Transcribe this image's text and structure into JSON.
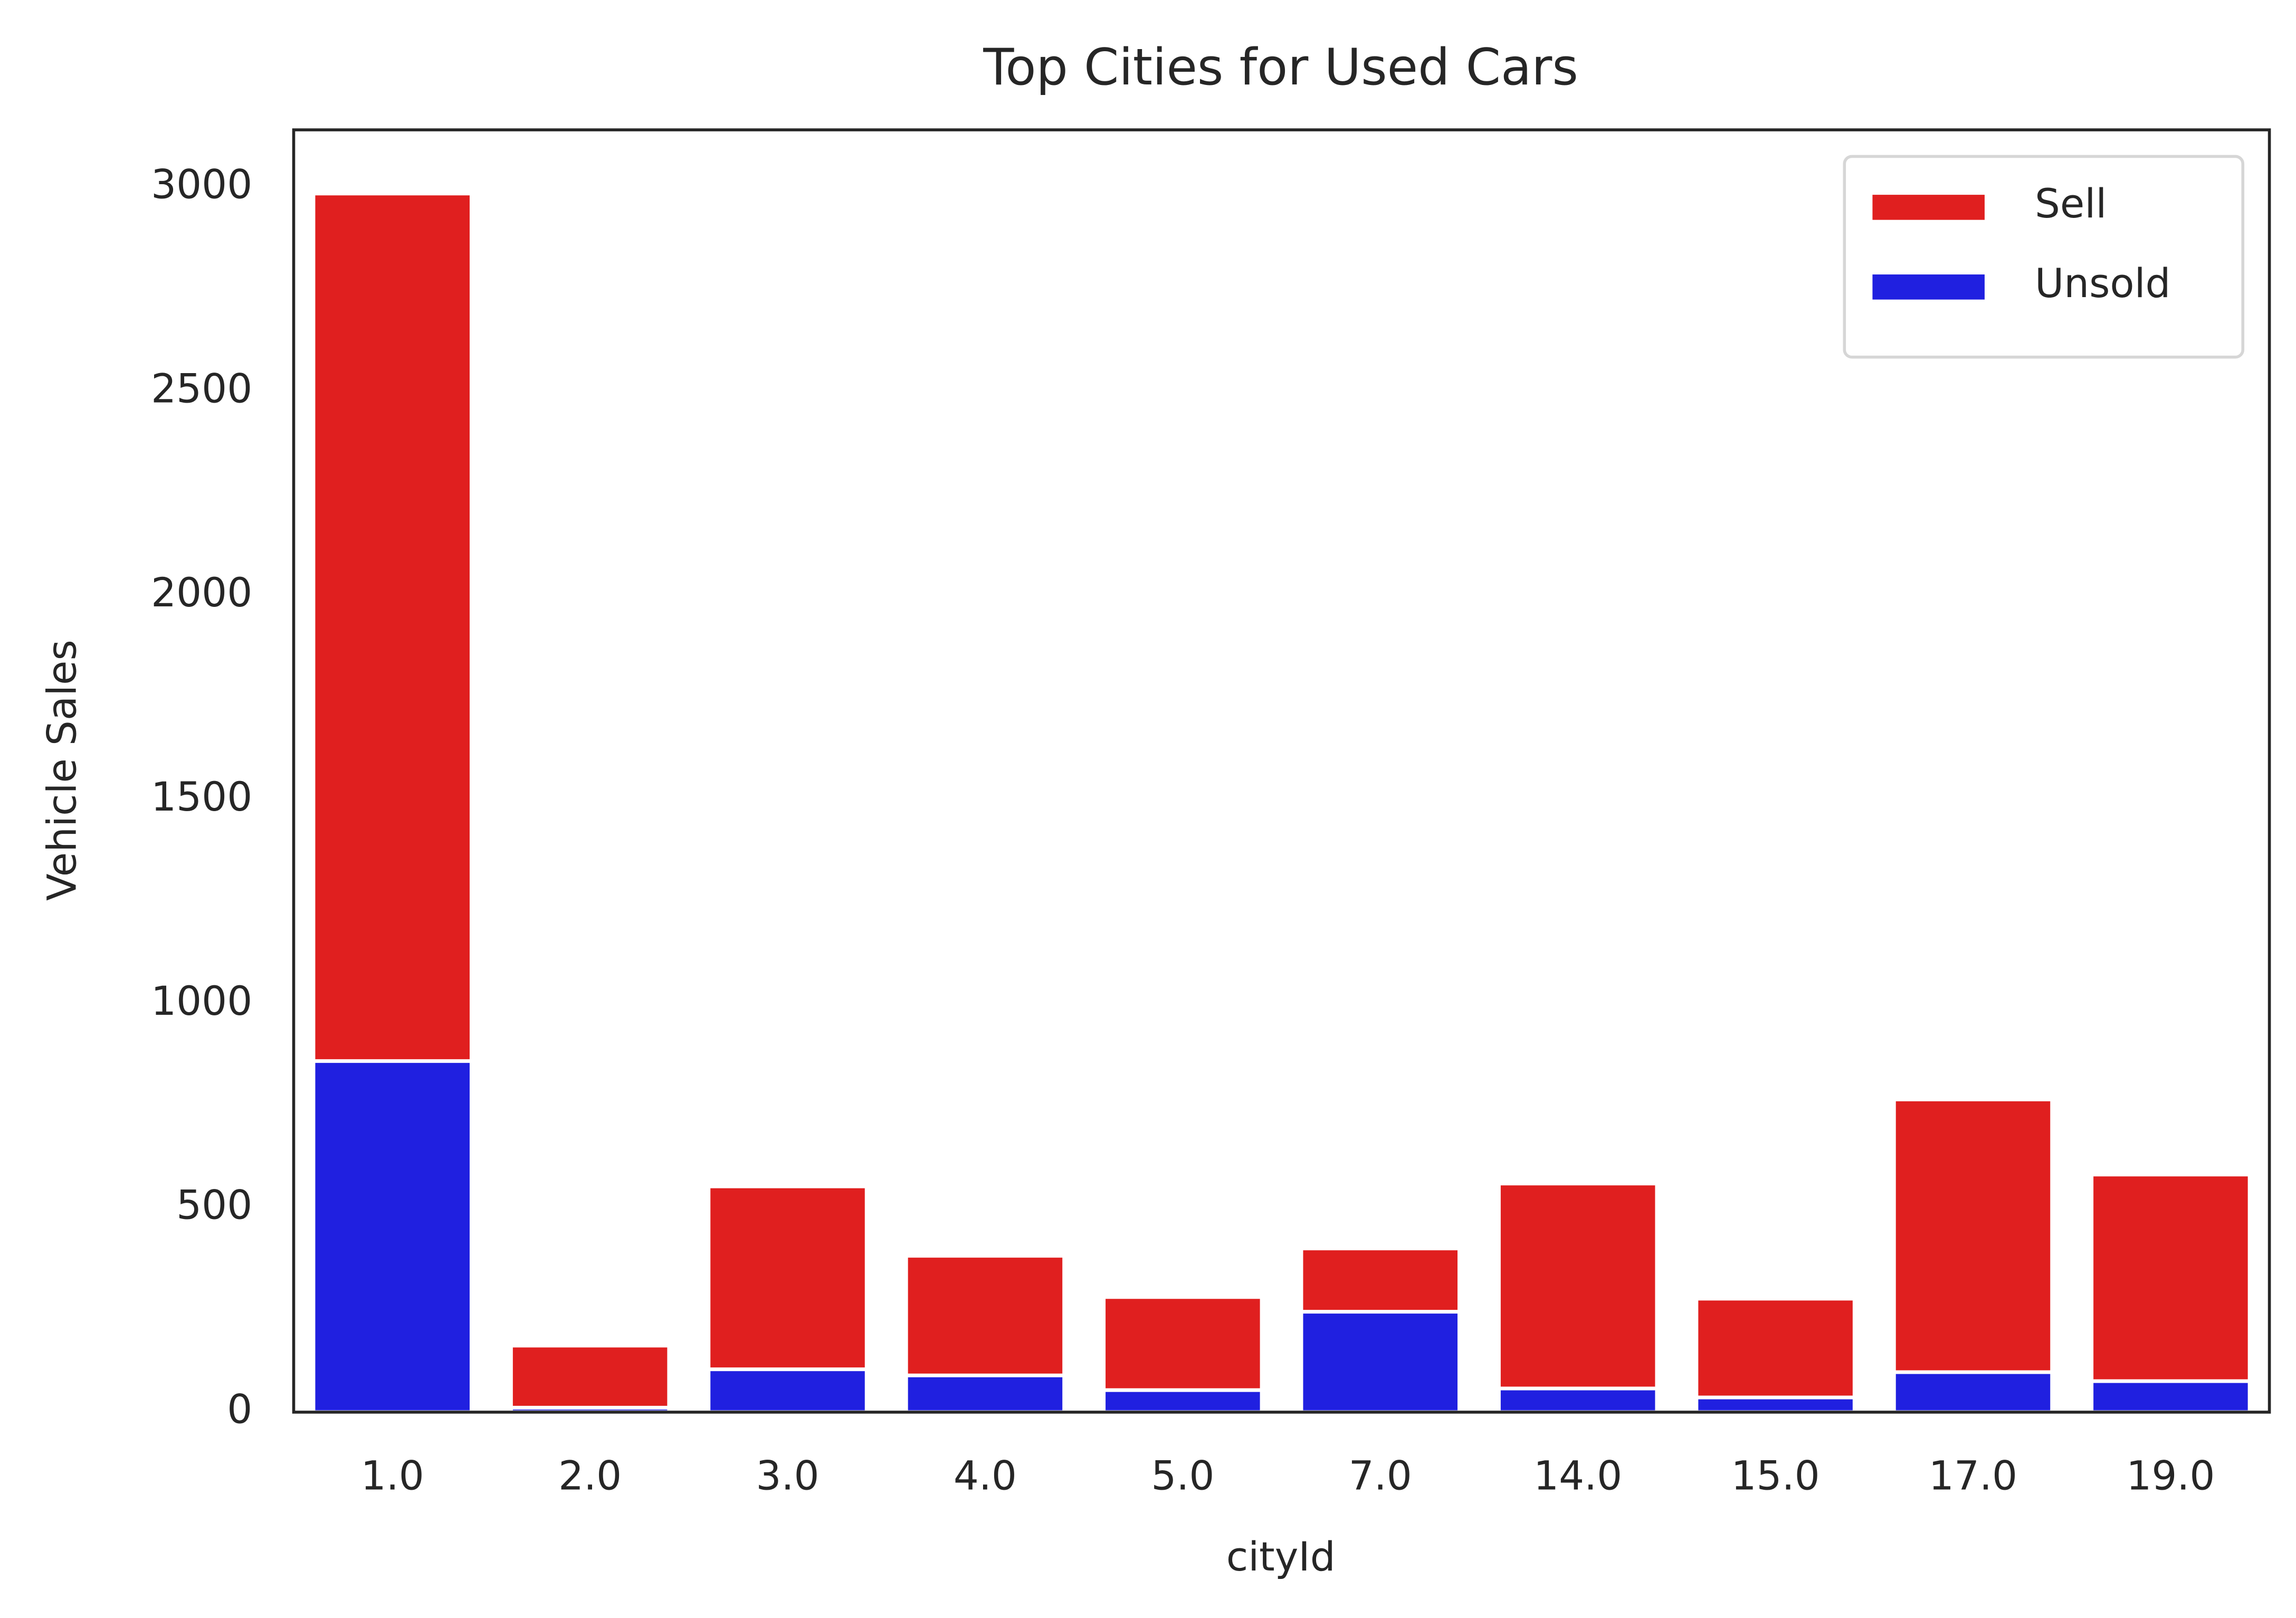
{
  "chart_data": {
    "type": "bar",
    "title": "Top Cities for Used Cars",
    "x_label": "cityId",
    "y_label": "Vehicle Sales",
    "categories": [
      "1.0",
      "2.0",
      "3.0",
      "4.0",
      "5.0",
      "7.0",
      "14.0",
      "15.0",
      "17.0",
      "19.0"
    ],
    "series": [
      {
        "name": "Sell",
        "color": "#e01f1f",
        "values": [
          2985,
          163,
          553,
          383,
          282,
          401,
          560,
          278,
          766,
          582
        ]
      },
      {
        "name": "Unsold",
        "color": "#2020e0",
        "values": [
          860,
          11,
          105,
          90,
          54,
          246,
          58,
          36,
          98,
          76
        ]
      }
    ],
    "ylim": [
      0,
      3141
    ],
    "yticks": [
      0,
      500,
      1000,
      1500,
      2000,
      2500,
      3000
    ],
    "grid": false,
    "legend": "upper right"
  }
}
